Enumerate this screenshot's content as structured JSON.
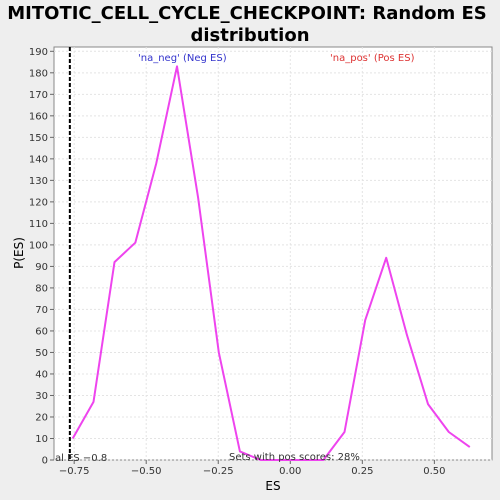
{
  "chart_data": {
    "type": "line",
    "title_lines": [
      "MITOTIC_CELL_CYCLE_CHECKPOINT: Random ES",
      "distribution"
    ],
    "xlabel": "ES",
    "ylabel": "P(ES)",
    "xlim": [
      -0.82,
      0.7
    ],
    "ylim": [
      0,
      192
    ],
    "x_ticks": [
      -0.75,
      -0.5,
      -0.25,
      0.0,
      0.25,
      0.5
    ],
    "x_tick_labels": [
      "−0.75",
      "−0.50",
      "−0.25",
      "0.00",
      "0.25",
      "0.50"
    ],
    "y_ticks": [
      0,
      10,
      20,
      30,
      40,
      50,
      60,
      70,
      80,
      90,
      100,
      110,
      120,
      130,
      140,
      150,
      160,
      170,
      180,
      190
    ],
    "grid": true,
    "series": [
      {
        "name": "random ES distribution",
        "color": "#ee44ee",
        "x": [
          -0.755,
          -0.683,
          -0.61,
          -0.538,
          -0.465,
          -0.393,
          -0.32,
          -0.248,
          -0.175,
          -0.103,
          -0.03,
          0.043,
          0.115,
          0.188,
          0.26,
          0.333,
          0.405,
          0.478,
          0.55,
          0.623
        ],
        "y": [
          10,
          27,
          92,
          101,
          138,
          183,
          122,
          50,
          4,
          0,
          0,
          0,
          0,
          13,
          65,
          94,
          58,
          26,
          13,
          6
        ]
      }
    ],
    "vline": {
      "x": -0.765,
      "style": "dashed",
      "color": "#000000"
    },
    "annotations": {
      "neg_label": "'na_neg' (Neg ES)",
      "neg_color": "#3333cc",
      "pos_label": "'na_pos' (Pos ES)",
      "pos_color": "#dd3333",
      "actual_es": "al ES −0.8",
      "pos_scores": "Sets with pos scores: 28%"
    }
  }
}
